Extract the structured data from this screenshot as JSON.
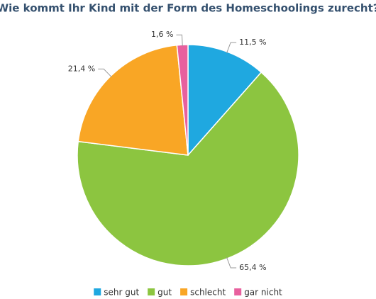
{
  "chart_data": {
    "type": "pie",
    "title": "Wie kommt Ihr Kind mit der Form des Homeschoolings zurecht?",
    "categories": [
      "sehr gut",
      "gut",
      "schlecht",
      "gar nicht"
    ],
    "values": [
      11.5,
      65.4,
      21.4,
      1.6
    ],
    "value_labels": [
      "11,5 %",
      "65,4 %",
      "21,4 %",
      "1,6 %"
    ],
    "colors": [
      "#1fa8e0",
      "#8cc540",
      "#f9a625",
      "#e8609e"
    ]
  }
}
